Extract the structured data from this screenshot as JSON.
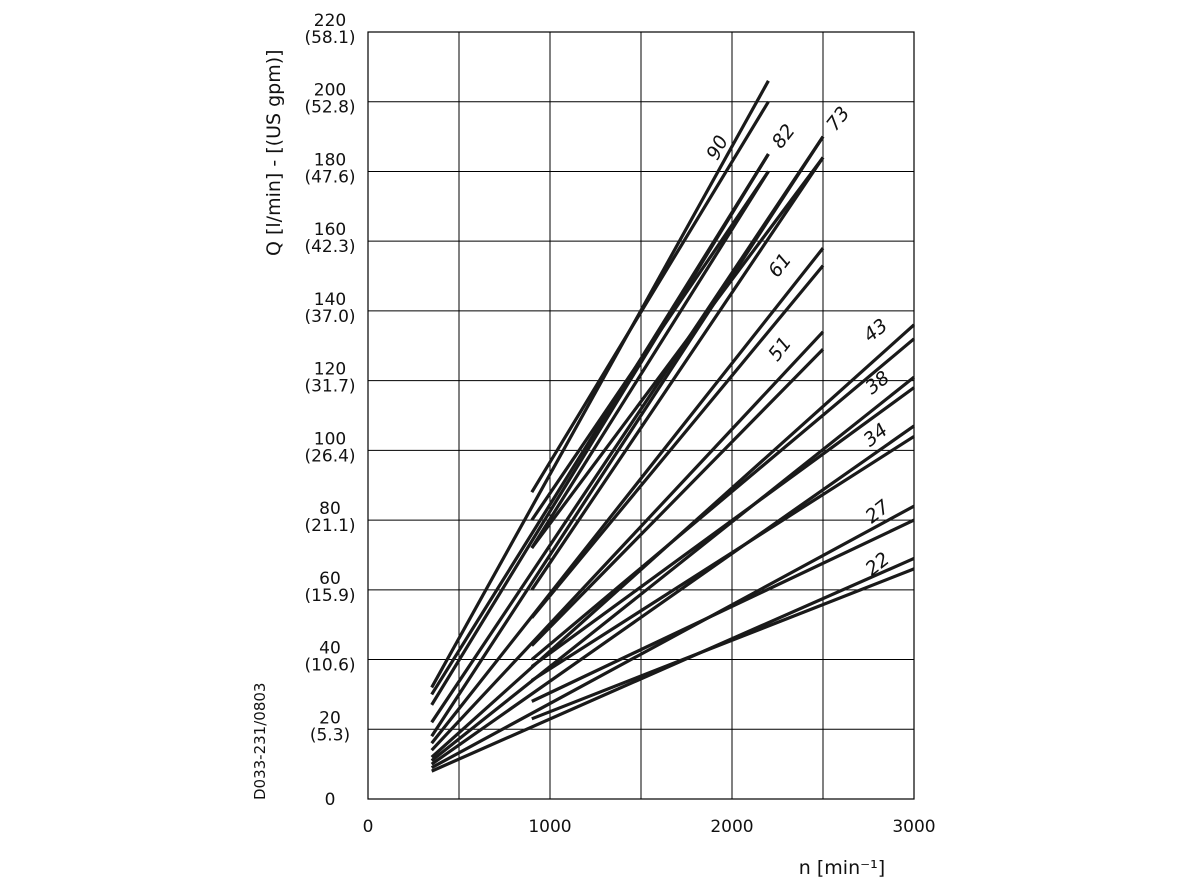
{
  "chart_data": {
    "type": "line",
    "title": "",
    "xlabel": "n [min⁻¹]",
    "ylabel": "Q [l/min] - [(US gpm)]",
    "drawing_code": "D033-231/0803",
    "xlim": [
      0,
      3000
    ],
    "ylim": [
      0,
      220
    ],
    "grid": true,
    "x_ticks": [
      {
        "value": 0,
        "label": "0"
      },
      {
        "value": 1000,
        "label": "1000"
      },
      {
        "value": 2000,
        "label": "2000"
      },
      {
        "value": 3000,
        "label": "3000"
      }
    ],
    "x_grid": [
      500,
      1000,
      1500,
      2000,
      2500,
      3000
    ],
    "y_ticks": [
      {
        "value": 0,
        "label": "0",
        "sub": ""
      },
      {
        "value": 20,
        "label": "20",
        "sub": "(5.3)"
      },
      {
        "value": 40,
        "label": "40",
        "sub": "(10.6)"
      },
      {
        "value": 60,
        "label": "60",
        "sub": "(15.9)"
      },
      {
        "value": 80,
        "label": "80",
        "sub": "(21.1)"
      },
      {
        "value": 100,
        "label": "100",
        "sub": "(26.4)"
      },
      {
        "value": 120,
        "label": "120",
        "sub": "(31.7)"
      },
      {
        "value": 140,
        "label": "140",
        "sub": "(37.0)"
      },
      {
        "value": 160,
        "label": "160",
        "sub": "(42.3)"
      },
      {
        "value": 180,
        "label": "180",
        "sub": "(47.6)"
      },
      {
        "value": 200,
        "label": "200",
        "sub": "(52.8)"
      },
      {
        "value": 220,
        "label": "220",
        "sub": "(58.1)"
      }
    ],
    "series": [
      {
        "name": "90",
        "lines": [
          {
            "x": [
              350,
              2200
            ],
            "y": [
              32,
              206
            ]
          },
          {
            "x": [
              900,
              2200
            ],
            "y": [
              88,
              200
            ]
          },
          {
            "x": [
              350,
              2200
            ],
            "y": [
              27,
              185
            ]
          },
          {
            "x": [
              900,
              2200
            ],
            "y": [
              72,
              180
            ]
          }
        ]
      },
      {
        "name": "82",
        "lines": [
          {
            "x": [
              350,
              2200
            ],
            "y": [
              30,
              185
            ]
          },
          {
            "x": [
              900,
              2200
            ],
            "y": [
              80,
              180
            ]
          },
          {
            "x": [
              350,
              2500
            ],
            "y": [
              22,
              190
            ]
          },
          {
            "x": [
              900,
              2500
            ],
            "y": [
              72,
              184
            ]
          }
        ]
      },
      {
        "name": "73",
        "lines": [
          {
            "x": [
              350,
              2500
            ],
            "y": [
              18,
              190
            ]
          },
          {
            "x": [
              900,
              2500
            ],
            "y": [
              60,
              184
            ]
          }
        ]
      },
      {
        "name": "61",
        "lines": [
          {
            "x": [
              350,
              2500
            ],
            "y": [
              16,
              158
            ]
          },
          {
            "x": [
              900,
              2500
            ],
            "y": [
              52,
              153
            ]
          }
        ]
      },
      {
        "name": "51",
        "lines": [
          {
            "x": [
              350,
              2500
            ],
            "y": [
              14,
              134
            ]
          },
          {
            "x": [
              900,
              2500
            ],
            "y": [
              44,
              129
            ]
          }
        ]
      },
      {
        "name": "43",
        "lines": [
          {
            "x": [
              350,
              3000
            ],
            "y": [
              12,
              136
            ]
          },
          {
            "x": [
              900,
              3000
            ],
            "y": [
              40,
              132
            ]
          }
        ]
      },
      {
        "name": "38",
        "lines": [
          {
            "x": [
              350,
              3000
            ],
            "y": [
              11,
              121
            ]
          },
          {
            "x": [
              900,
              3000
            ],
            "y": [
              38,
              118
            ]
          }
        ]
      },
      {
        "name": "34",
        "lines": [
          {
            "x": [
              350,
              3000
            ],
            "y": [
              10,
              107
            ]
          },
          {
            "x": [
              900,
              3000
            ],
            "y": [
              34,
              104
            ]
          }
        ]
      },
      {
        "name": "27",
        "lines": [
          {
            "x": [
              350,
              3000
            ],
            "y": [
              9,
              84
            ]
          },
          {
            "x": [
              900,
              3000
            ],
            "y": [
              28,
              80
            ]
          }
        ]
      },
      {
        "name": "22",
        "lines": [
          {
            "x": [
              350,
              3000
            ],
            "y": [
              8,
              69
            ]
          },
          {
            "x": [
              900,
              3000
            ],
            "y": [
              23,
              66
            ]
          }
        ]
      }
    ],
    "series_labels": [
      {
        "text": "90",
        "x": 1950,
        "y": 186
      },
      {
        "text": "82",
        "x": 2310,
        "y": 189
      },
      {
        "text": "73",
        "x": 2610,
        "y": 194
      },
      {
        "text": "61",
        "x": 2290,
        "y": 152
      },
      {
        "text": "51",
        "x": 2290,
        "y": 128
      },
      {
        "text": "43",
        "x": 2810,
        "y": 133
      },
      {
        "text": "38",
        "x": 2820,
        "y": 118
      },
      {
        "text": "34",
        "x": 2810,
        "y": 103
      },
      {
        "text": "27",
        "x": 2820,
        "y": 81
      },
      {
        "text": "22",
        "x": 2820,
        "y": 66
      }
    ]
  }
}
